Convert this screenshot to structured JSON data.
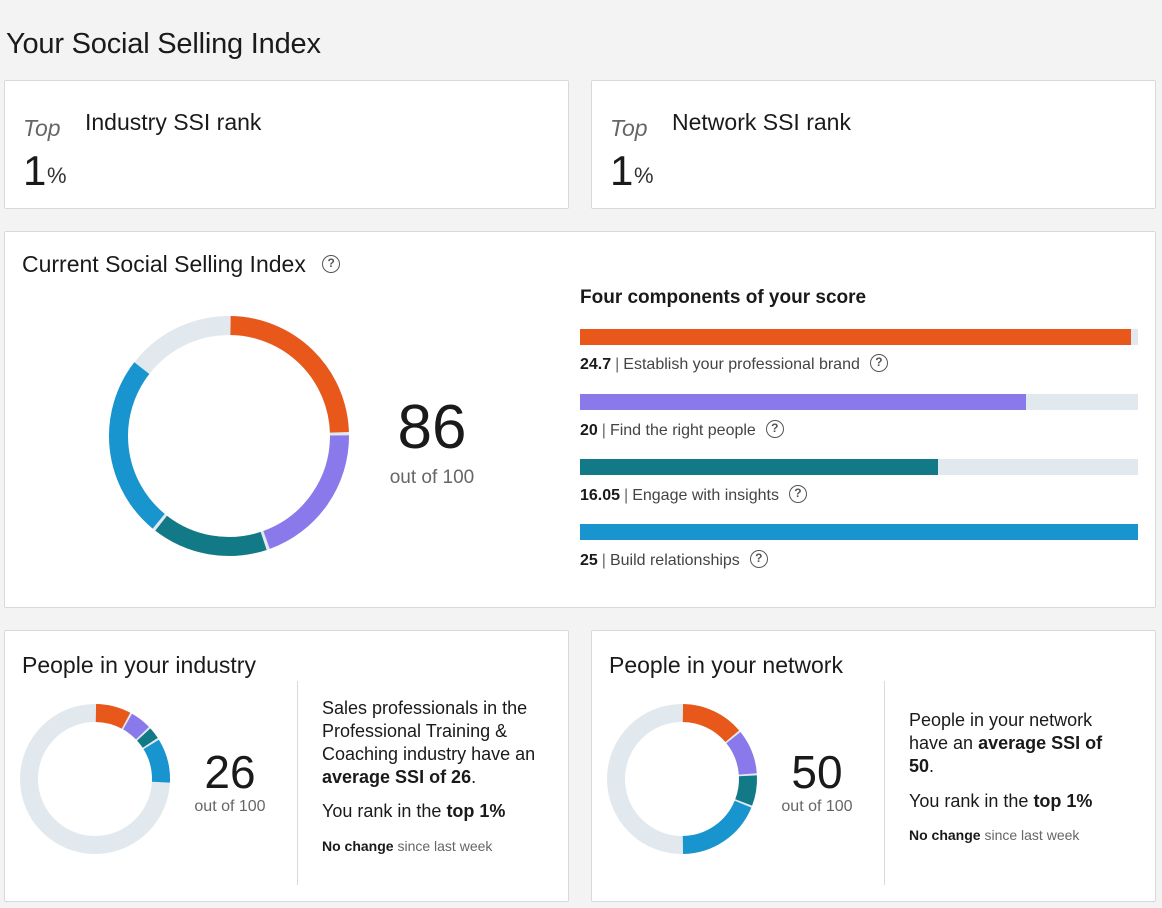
{
  "page": {
    "title": "Your Social Selling Index"
  },
  "rank_cards": [
    {
      "top_label": "Top",
      "label": "Industry SSI rank",
      "value": "1",
      "unit": "%"
    },
    {
      "top_label": "Top",
      "label": "Network SSI rank",
      "value": "1",
      "unit": "%"
    }
  ],
  "current": {
    "title": "Current Social Selling Index",
    "help_icon": "help-circle-icon",
    "score": "86",
    "out_of": "out of 100",
    "components_title": "Four components of your score",
    "components": [
      {
        "value": "24.7",
        "label": "Establish your professional brand",
        "fraction": 0.988,
        "color": "#e7581a"
      },
      {
        "value": "20",
        "label": "Find the right people",
        "fraction": 0.8,
        "color": "#8a79ea"
      },
      {
        "value": "16.05",
        "label": "Engage with insights",
        "fraction": 0.642,
        "color": "#127a86"
      },
      {
        "value": "25",
        "label": "Build relationships",
        "fraction": 1.0,
        "color": "#1894cf"
      }
    ]
  },
  "industry": {
    "title": "People in your industry",
    "score": "26",
    "out_of": "out of 100",
    "desc_prefix": "Sales professionals in the Professional Training & Coaching industry have an ",
    "desc_bold": "average SSI of 26",
    "desc_suffix": ".",
    "rank_prefix": "You rank in the ",
    "rank_bold": "top 1%",
    "change_bold": "No change",
    "change_rest": " since last week",
    "components": [
      8.0,
      5.0,
      3.0,
      10.0
    ]
  },
  "network": {
    "title": "People in your network",
    "score": "50",
    "out_of": "out of 100",
    "desc_prefix": "People in your network have an ",
    "desc_bold": "average SSI of 50",
    "desc_suffix": ".",
    "rank_prefix": "You rank in the ",
    "rank_bold": "top 1%",
    "change_bold": "No change",
    "change_rest": " since last week",
    "components": [
      14.0,
      10.0,
      7.0,
      19.0
    ]
  },
  "colors": {
    "brand": "#e7581a",
    "find": "#8a79ea",
    "engage": "#127a86",
    "build": "#1894cf",
    "track": "#e1e9ee"
  }
}
